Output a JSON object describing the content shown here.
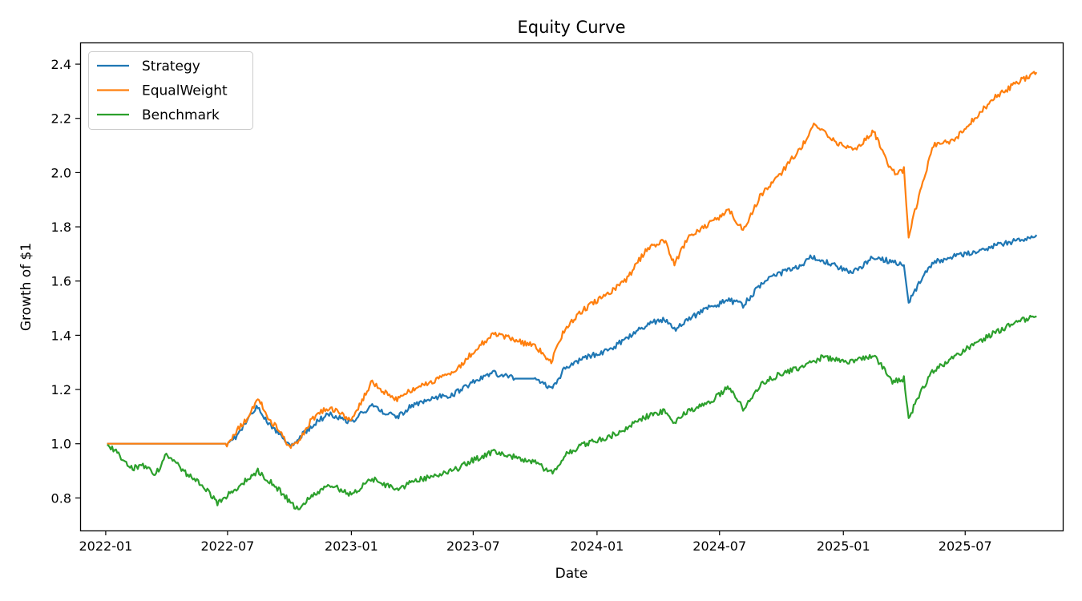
{
  "chart_data": {
    "type": "line",
    "title": "Equity Curve",
    "xlabel": "Date",
    "ylabel": "Growth of $1",
    "xlim": [
      "2021-11-24",
      "2025-11-23"
    ],
    "ylim": [
      0.68,
      2.48
    ],
    "x_ticks": [
      "2022-01",
      "2022-07",
      "2023-01",
      "2023-07",
      "2024-01",
      "2024-07",
      "2025-01",
      "2025-07"
    ],
    "y_ticks": [
      "0.8",
      "1.0",
      "1.2",
      "1.4",
      "1.6",
      "1.8",
      "2.0",
      "2.2",
      "2.4"
    ],
    "grid": false,
    "legend_position": "upper-left",
    "series": [
      {
        "name": "Strategy",
        "color": "#1f77b4",
        "points": [
          [
            "2022-01-03",
            1.0
          ],
          [
            "2022-06-30",
            1.0
          ],
          [
            "2022-07-15",
            1.03
          ],
          [
            "2022-08-01",
            1.09
          ],
          [
            "2022-08-15",
            1.14
          ],
          [
            "2022-09-01",
            1.07
          ],
          [
            "2022-09-15",
            1.04
          ],
          [
            "2022-10-01",
            0.99
          ],
          [
            "2022-10-15",
            1.02
          ],
          [
            "2022-11-01",
            1.06
          ],
          [
            "2022-11-15",
            1.09
          ],
          [
            "2022-12-01",
            1.11
          ],
          [
            "2023-01-01",
            1.08
          ],
          [
            "2023-01-15",
            1.11
          ],
          [
            "2023-02-01",
            1.14
          ],
          [
            "2023-02-15",
            1.12
          ],
          [
            "2023-03-10",
            1.1
          ],
          [
            "2023-04-01",
            1.14
          ],
          [
            "2023-05-01",
            1.17
          ],
          [
            "2023-06-01",
            1.18
          ],
          [
            "2023-07-01",
            1.23
          ],
          [
            "2023-08-01",
            1.26
          ],
          [
            "2023-09-01",
            1.24
          ],
          [
            "2023-10-01",
            1.24
          ],
          [
            "2023-10-25",
            1.2
          ],
          [
            "2023-11-15",
            1.28
          ],
          [
            "2023-12-15",
            1.32
          ],
          [
            "2024-01-15",
            1.34
          ],
          [
            "2024-02-15",
            1.39
          ],
          [
            "2024-03-15",
            1.44
          ],
          [
            "2024-04-10",
            1.46
          ],
          [
            "2024-04-25",
            1.42
          ],
          [
            "2024-05-15",
            1.46
          ],
          [
            "2024-06-15",
            1.5
          ],
          [
            "2024-07-15",
            1.53
          ],
          [
            "2024-08-05",
            1.51
          ],
          [
            "2024-09-01",
            1.59
          ],
          [
            "2024-10-01",
            1.63
          ],
          [
            "2024-11-01",
            1.66
          ],
          [
            "2024-11-15",
            1.69
          ],
          [
            "2024-12-15",
            1.66
          ],
          [
            "2025-01-15",
            1.63
          ],
          [
            "2025-02-15",
            1.69
          ],
          [
            "2025-03-15",
            1.67
          ],
          [
            "2025-04-01",
            1.66
          ],
          [
            "2025-04-08",
            1.52
          ],
          [
            "2025-04-25",
            1.6
          ],
          [
            "2025-05-15",
            1.67
          ],
          [
            "2025-06-15",
            1.69
          ],
          [
            "2025-07-15",
            1.71
          ],
          [
            "2025-08-15",
            1.73
          ],
          [
            "2025-09-15",
            1.75
          ],
          [
            "2025-10-15",
            1.77
          ]
        ]
      },
      {
        "name": "EqualWeight",
        "color": "#ff7f0e",
        "points": [
          [
            "2022-01-03",
            1.0
          ],
          [
            "2022-06-30",
            1.0
          ],
          [
            "2022-07-15",
            1.05
          ],
          [
            "2022-08-01",
            1.1
          ],
          [
            "2022-08-15",
            1.17
          ],
          [
            "2022-09-01",
            1.09
          ],
          [
            "2022-09-15",
            1.05
          ],
          [
            "2022-10-01",
            0.99
          ],
          [
            "2022-10-15",
            1.01
          ],
          [
            "2022-11-01",
            1.08
          ],
          [
            "2022-11-15",
            1.12
          ],
          [
            "2022-12-01",
            1.13
          ],
          [
            "2023-01-01",
            1.09
          ],
          [
            "2023-01-15",
            1.15
          ],
          [
            "2023-02-01",
            1.23
          ],
          [
            "2023-02-15",
            1.2
          ],
          [
            "2023-03-10",
            1.16
          ],
          [
            "2023-04-01",
            1.2
          ],
          [
            "2023-05-01",
            1.23
          ],
          [
            "2023-06-01",
            1.26
          ],
          [
            "2023-07-01",
            1.34
          ],
          [
            "2023-08-01",
            1.41
          ],
          [
            "2023-09-01",
            1.38
          ],
          [
            "2023-10-01",
            1.36
          ],
          [
            "2023-10-25",
            1.3
          ],
          [
            "2023-11-15",
            1.43
          ],
          [
            "2023-12-15",
            1.5
          ],
          [
            "2024-01-15",
            1.55
          ],
          [
            "2024-02-15",
            1.61
          ],
          [
            "2024-03-15",
            1.72
          ],
          [
            "2024-04-10",
            1.75
          ],
          [
            "2024-04-25",
            1.66
          ],
          [
            "2024-05-15",
            1.76
          ],
          [
            "2024-06-15",
            1.81
          ],
          [
            "2024-07-15",
            1.86
          ],
          [
            "2024-08-05",
            1.79
          ],
          [
            "2024-09-01",
            1.92
          ],
          [
            "2024-10-01",
            2.0
          ],
          [
            "2024-11-01",
            2.1
          ],
          [
            "2024-11-20",
            2.18
          ],
          [
            "2024-12-15",
            2.12
          ],
          [
            "2025-01-15",
            2.08
          ],
          [
            "2025-02-15",
            2.15
          ],
          [
            "2025-03-15",
            2.0
          ],
          [
            "2025-04-01",
            2.01
          ],
          [
            "2025-04-08",
            1.77
          ],
          [
            "2025-04-25",
            1.93
          ],
          [
            "2025-05-15",
            2.1
          ],
          [
            "2025-06-15",
            2.12
          ],
          [
            "2025-07-15",
            2.2
          ],
          [
            "2025-08-15",
            2.28
          ],
          [
            "2025-09-15",
            2.33
          ],
          [
            "2025-10-15",
            2.37
          ]
        ]
      },
      {
        "name": "Benchmark",
        "color": "#2ca02c",
        "points": [
          [
            "2022-01-03",
            1.0
          ],
          [
            "2022-01-20",
            0.96
          ],
          [
            "2022-02-10",
            0.91
          ],
          [
            "2022-03-01",
            0.92
          ],
          [
            "2022-03-15",
            0.88
          ],
          [
            "2022-04-01",
            0.96
          ],
          [
            "2022-05-01",
            0.89
          ],
          [
            "2022-06-01",
            0.83
          ],
          [
            "2022-06-16",
            0.78
          ],
          [
            "2022-07-01",
            0.81
          ],
          [
            "2022-08-15",
            0.9
          ],
          [
            "2022-09-15",
            0.83
          ],
          [
            "2022-10-12",
            0.76
          ],
          [
            "2022-11-01",
            0.8
          ],
          [
            "2022-12-01",
            0.85
          ],
          [
            "2023-01-01",
            0.81
          ],
          [
            "2023-02-01",
            0.87
          ],
          [
            "2023-03-10",
            0.83
          ],
          [
            "2023-04-01",
            0.86
          ],
          [
            "2023-05-01",
            0.88
          ],
          [
            "2023-06-01",
            0.9
          ],
          [
            "2023-07-01",
            0.94
          ],
          [
            "2023-08-01",
            0.97
          ],
          [
            "2023-09-01",
            0.95
          ],
          [
            "2023-10-01",
            0.93
          ],
          [
            "2023-10-27",
            0.89
          ],
          [
            "2023-11-15",
            0.96
          ],
          [
            "2023-12-15",
            1.0
          ],
          [
            "2024-01-15",
            1.02
          ],
          [
            "2024-02-15",
            1.06
          ],
          [
            "2024-03-15",
            1.1
          ],
          [
            "2024-04-10",
            1.12
          ],
          [
            "2024-04-25",
            1.08
          ],
          [
            "2024-05-15",
            1.12
          ],
          [
            "2024-06-15",
            1.15
          ],
          [
            "2024-07-15",
            1.21
          ],
          [
            "2024-08-05",
            1.13
          ],
          [
            "2024-09-01",
            1.22
          ],
          [
            "2024-10-01",
            1.26
          ],
          [
            "2024-11-01",
            1.28
          ],
          [
            "2024-12-01",
            1.32
          ],
          [
            "2025-01-15",
            1.3
          ],
          [
            "2025-02-15",
            1.33
          ],
          [
            "2025-03-15",
            1.23
          ],
          [
            "2025-04-01",
            1.24
          ],
          [
            "2025-04-08",
            1.09
          ],
          [
            "2025-04-25",
            1.19
          ],
          [
            "2025-05-15",
            1.27
          ],
          [
            "2025-06-15",
            1.32
          ],
          [
            "2025-07-15",
            1.37
          ],
          [
            "2025-08-15",
            1.41
          ],
          [
            "2025-09-15",
            1.45
          ],
          [
            "2025-10-15",
            1.47
          ]
        ]
      }
    ]
  }
}
